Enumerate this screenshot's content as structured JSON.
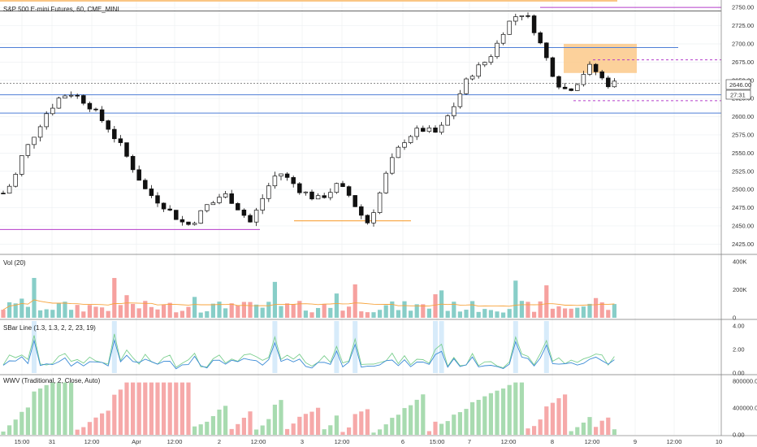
{
  "panes": {
    "price_title": "S&P 500 E-mini Futures, 60, CME_MINI",
    "vol_title": "Vol (20)",
    "sbar_title": "SBar Line (1.3, 1.3, 2, 2, 23, 19)",
    "wwv_title": "WWV (Traditional, 2, Close, Auto)"
  },
  "colors": {
    "up": "#26a69a",
    "down": "#ef5350",
    "candle_body": "#111111",
    "blue_line": "#4f7fd6",
    "purple_line": "#b43cc9",
    "orange": "#f7a33b",
    "orange_zone": "#fbc98a",
    "sbar_green": "#7ccf8f",
    "sbar_blue": "#3b8bd6",
    "sbar_band": "#d7ebfa",
    "wwv_up": "#a8dbb0",
    "wwv_down": "#f6a9a9",
    "grid": "#eef0f3"
  },
  "price_badges": {
    "last_price": "2646.00",
    "countdown": "27:31"
  },
  "chart_data": {
    "type": "candlestick",
    "price_axis": {
      "ticks": [
        "2750.00",
        "2725.00",
        "2700.00",
        "2675.00",
        "2650.00",
        "2625.00",
        "2600.00",
        "2575.00",
        "2550.00",
        "2525.00",
        "2500.00",
        "2475.00",
        "2450.00",
        "2425.00"
      ],
      "range": [
        2412,
        2758
      ]
    },
    "time_axis": [
      "15:00",
      "31",
      "12:00",
      "Apr",
      "12:00",
      "2",
      "12:00",
      "3",
      "12:00",
      "6",
      "15:00",
      "7",
      "12:00",
      "8",
      "12:00",
      "9",
      "12:00",
      "10"
    ],
    "volume_axis": [
      "400K",
      "200K",
      "0"
    ],
    "sbar_axis": [
      "4.00",
      "2.00",
      "0.00"
    ],
    "wwv_axis": [
      "800000.00",
      "400000.00",
      "0.00"
    ],
    "horizontal_levels": {
      "blue": [
        2695,
        2630,
        2605
      ],
      "purple": [
        2750,
        2445
      ],
      "black": [
        2745
      ],
      "dotted_gray": [
        2646
      ],
      "orange": [
        2457
      ]
    },
    "close_path": [
      2495,
      2505,
      2520,
      2545,
      2560,
      2575,
      2590,
      2605,
      2615,
      2625,
      2630,
      2632,
      2628,
      2622,
      2615,
      2605,
      2595,
      2585,
      2572,
      2560,
      2545,
      2530,
      2515,
      2500,
      2492,
      2485,
      2478,
      2470,
      2462,
      2455,
      2452,
      2458,
      2468,
      2478,
      2482,
      2490,
      2492,
      2485,
      2475,
      2465,
      2455,
      2470,
      2488,
      2505,
      2518,
      2522,
      2515,
      2508,
      2500,
      2495,
      2490,
      2487,
      2492,
      2498,
      2505,
      2500,
      2492,
      2478,
      2465,
      2455,
      2472,
      2495,
      2520,
      2540,
      2555,
      2568,
      2575,
      2580,
      2582,
      2580,
      2578,
      2585,
      2600,
      2615,
      2632,
      2648,
      2660,
      2668,
      2675,
      2685,
      2700,
      2718,
      2730,
      2738,
      2742,
      2735,
      2720,
      2700,
      2680,
      2660,
      2645,
      2638,
      2640,
      2648,
      2660,
      2668,
      2662,
      2652,
      2645,
      2646
    ]
  }
}
